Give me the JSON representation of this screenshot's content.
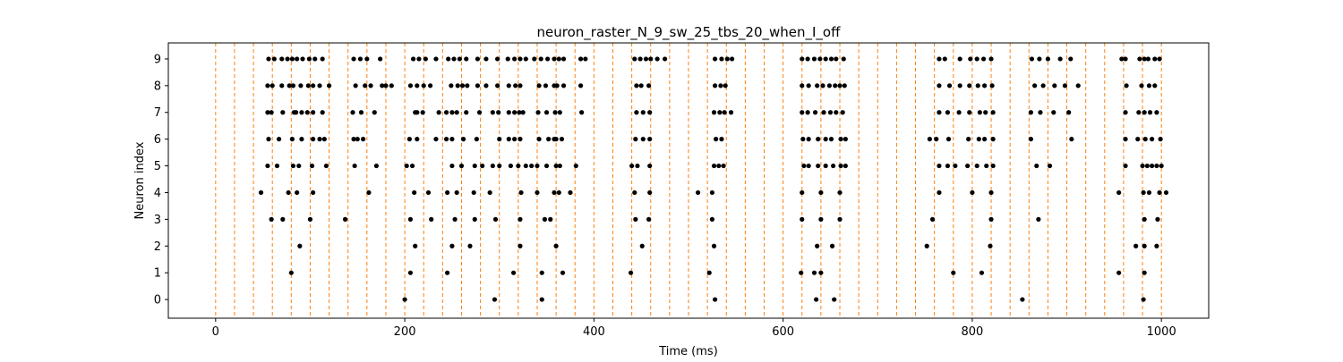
{
  "chart_data": {
    "type": "scatter",
    "title": "neuron_raster_N_9_sw_25_tbs_20_when_I_off",
    "xlabel": "Time (ms)",
    "ylabel": "Neuron index",
    "xlim": [
      -50,
      1050
    ],
    "ylim": [
      -0.7,
      9.6
    ],
    "xticks": [
      0,
      200,
      400,
      600,
      800,
      1000
    ],
    "yticks": [
      0,
      1,
      2,
      3,
      4,
      5,
      6,
      7,
      8,
      9
    ],
    "grid": false,
    "legend": "none",
    "marker_color": "#000000",
    "vline_color": "#ff7f0e",
    "window_boundaries": [
      0,
      20,
      40,
      60,
      80,
      100,
      120,
      140,
      160,
      180,
      200,
      220,
      240,
      260,
      280,
      300,
      320,
      340,
      360,
      380,
      400,
      420,
      440,
      460,
      480,
      500,
      520,
      540,
      560,
      580,
      600,
      620,
      640,
      660,
      680,
      700,
      720,
      740,
      760,
      780,
      800,
      820,
      840,
      860,
      880,
      900,
      920,
      940,
      960,
      980,
      1000
    ],
    "spikes": [
      {
        "neuron": 0,
        "times": [
          200,
          295,
          345,
          528,
          635,
          654,
          853,
          981
        ]
      },
      {
        "neuron": 1,
        "times": [
          80,
          206,
          245,
          315,
          345,
          367,
          439,
          522,
          619,
          633,
          640,
          780,
          810,
          955,
          982
        ]
      },
      {
        "neuron": 2,
        "times": [
          89,
          211,
          250,
          269,
          322,
          360,
          451,
          527,
          636,
          652,
          752,
          819,
          973,
          982,
          995
        ]
      },
      {
        "neuron": 3,
        "times": [
          59,
          71,
          100,
          137,
          206,
          228,
          253,
          274,
          296,
          322,
          348,
          354,
          444,
          458,
          525,
          620,
          640,
          660,
          758,
          820,
          870,
          982,
          996
        ]
      },
      {
        "neuron": 4,
        "times": [
          48,
          77,
          86,
          103,
          162,
          210,
          225,
          245,
          255,
          273,
          290,
          323,
          340,
          358,
          363,
          375,
          443,
          459,
          510,
          525,
          620,
          640,
          660,
          765,
          800,
          820,
          955,
          981,
          987,
          998,
          1005
        ]
      },
      {
        "neuron": 5,
        "times": [
          55,
          65,
          82,
          88,
          102,
          117,
          147,
          170,
          202,
          208,
          250,
          260,
          274,
          282,
          293,
          300,
          312,
          320,
          328,
          334,
          340,
          350,
          360,
          364,
          381,
          440,
          446,
          459,
          527,
          532,
          537,
          622,
          627,
          637,
          645,
          653,
          661,
          666,
          765,
          774,
          782,
          795,
          805,
          815,
          822,
          868,
          882,
          962,
          980,
          985,
          990,
          995,
          1000
        ]
      },
      {
        "neuron": 6,
        "times": [
          56,
          67,
          81,
          91,
          103,
          110,
          115,
          146,
          150,
          156,
          205,
          213,
          233,
          244,
          250,
          262,
          276,
          300,
          310,
          316,
          322,
          342,
          352,
          358,
          360,
          366,
          444,
          452,
          459,
          529,
          535,
          621,
          627,
          637,
          645,
          651,
          661,
          666,
          755,
          762,
          775,
          796,
          807,
          813,
          822,
          862,
          905,
          962,
          975,
          983,
          990,
          999
        ]
      },
      {
        "neuron": 7,
        "times": [
          55,
          59,
          71,
          83,
          85,
          91,
          97,
          103,
          113,
          145,
          154,
          168,
          211,
          213,
          219,
          236,
          244,
          250,
          255,
          265,
          279,
          293,
          299,
          310,
          316,
          321,
          325,
          341,
          350,
          359,
          364,
          387,
          445,
          452,
          459,
          527,
          533,
          538,
          545,
          620,
          626,
          634,
          643,
          650,
          656,
          663,
          765,
          774,
          786,
          797,
          808,
          814,
          822,
          862,
          872,
          886,
          902,
          962,
          976,
          982,
          988,
          995
        ]
      },
      {
        "neuron": 8,
        "times": [
          55,
          60,
          70,
          78,
          82,
          90,
          98,
          103,
          110,
          120,
          148,
          158,
          164,
          176,
          180,
          186,
          206,
          213,
          220,
          227,
          249,
          256,
          261,
          266,
          277,
          286,
          298,
          310,
          317,
          322,
          342,
          349,
          358,
          361,
          368,
          386,
          445,
          450,
          458,
          528,
          534,
          539,
          620,
          627,
          636,
          642,
          649,
          655,
          660,
          665,
          765,
          776,
          787,
          797,
          806,
          813,
          821,
          866,
          875,
          887,
          898,
          912,
          963,
          979,
          987,
          993
        ]
      },
      {
        "neuron": 9,
        "times": [
          56,
          62,
          70,
          76,
          81,
          86,
          92,
          99,
          105,
          113,
          146,
          153,
          160,
          174,
          209,
          215,
          222,
          233,
          246,
          252,
          258,
          265,
          277,
          286,
          298,
          309,
          316,
          322,
          328,
          337,
          344,
          351,
          358,
          363,
          368,
          386,
          391,
          443,
          449,
          455,
          460,
          467,
          475,
          528,
          535,
          541,
          546,
          620,
          626,
          633,
          639,
          645,
          651,
          656,
          664,
          765,
          771,
          787,
          798,
          805,
          812,
          820,
          863,
          871,
          880,
          893,
          904,
          958,
          962,
          977,
          982,
          986,
          993,
          998
        ]
      }
    ]
  }
}
